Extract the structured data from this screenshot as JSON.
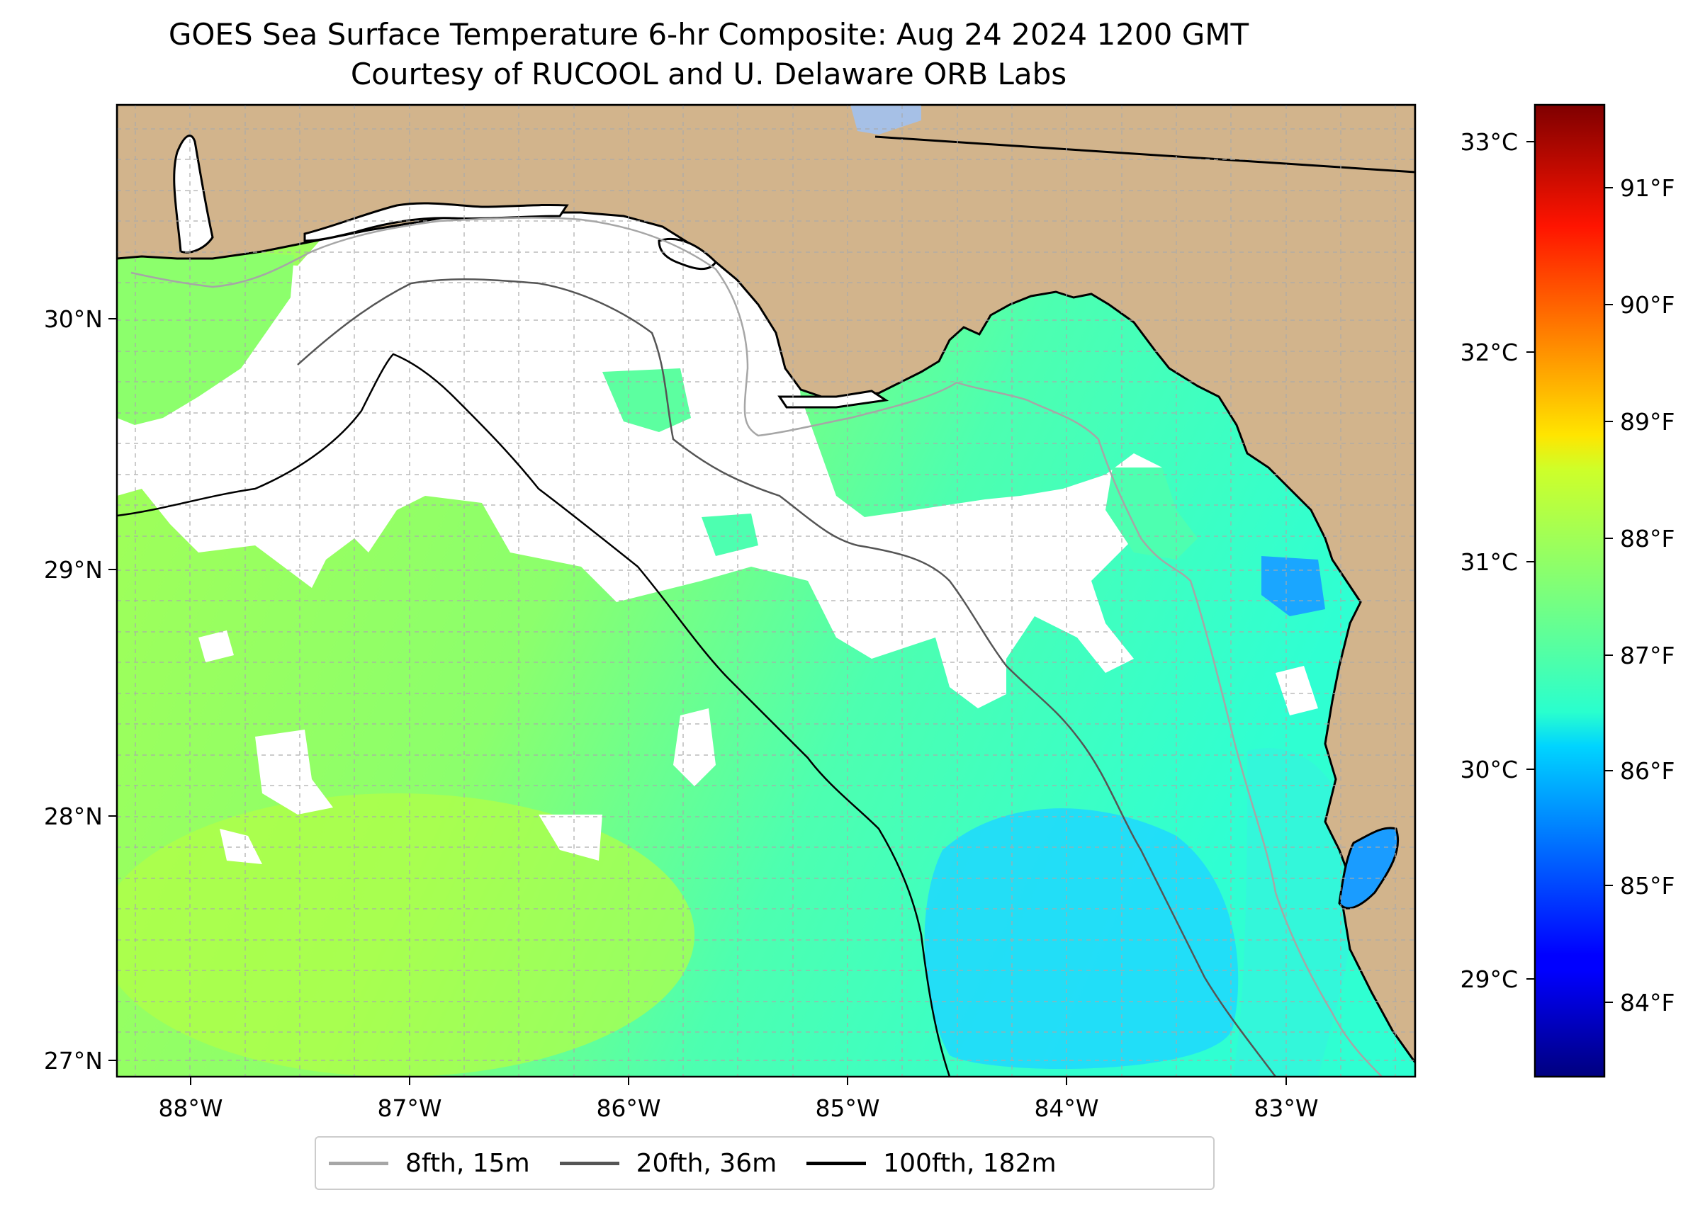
{
  "title": {
    "line1": "GOES Sea Surface Temperature 6-hr Composite: Aug 24 2024 1200 GMT",
    "line2": "Courtesy of RUCOOL and U. Delaware ORB Labs"
  },
  "map": {
    "lon_ticks": [
      "88°W",
      "87°W",
      "86°W",
      "85°W",
      "84°W",
      "83°W"
    ],
    "lat_ticks": [
      "30°N",
      "29°N",
      "28°N",
      "27°N"
    ],
    "colors": {
      "land": "#d2b48c",
      "ocean_nodata": "#ffffff",
      "inland_water": "#a6c0e6"
    }
  },
  "colorbar": {
    "celsius_labels": [
      "33°C",
      "32°C",
      "31°C",
      "30°C",
      "29°C"
    ],
    "fahrenheit_labels": [
      "91°F",
      "90°F",
      "89°F",
      "88°F",
      "87°F",
      "86°F",
      "85°F",
      "84°F"
    ],
    "colormap": "jet"
  },
  "legend": {
    "items": [
      {
        "label": "8fth, 15m",
        "color": "#a6a6a6"
      },
      {
        "label": "20fth, 36m",
        "color": "#555555"
      },
      {
        "label": "100fth, 182m",
        "color": "#000000"
      }
    ]
  }
}
